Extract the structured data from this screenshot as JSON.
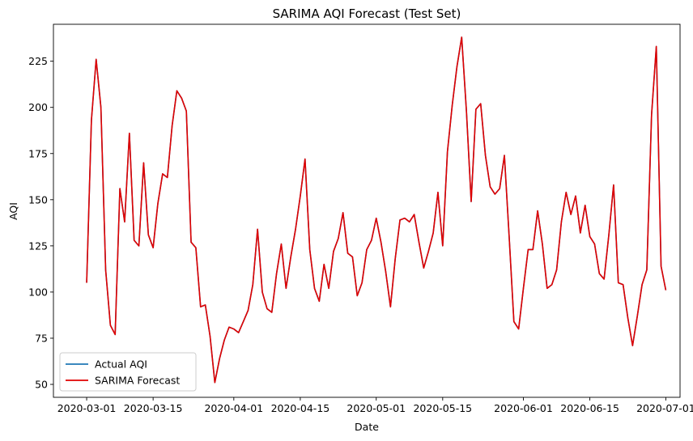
{
  "chart_data": {
    "type": "line",
    "title": "SARIMA AQI Forecast (Test Set)",
    "xlabel": "Date",
    "ylabel": "AQI",
    "x_start": "2020-03-01",
    "x_end": "2020-07-01",
    "xlim": [
      "2020-02-23",
      "2020-07-04"
    ],
    "ylim": [
      43,
      245
    ],
    "xticks": [
      "2020-03-01",
      "2020-03-15",
      "2020-04-01",
      "2020-04-15",
      "2020-05-01",
      "2020-05-15",
      "2020-06-01",
      "2020-06-15",
      "2020-07-01"
    ],
    "yticks": [
      50,
      75,
      100,
      125,
      150,
      175,
      200,
      225
    ],
    "grid": false,
    "legend_position": "lower-left",
    "series": [
      {
        "name": "Actual AQI",
        "color": "#1f77b4",
        "values": [
          105,
          193,
          226,
          200,
          112,
          82,
          77,
          156,
          138,
          186,
          128,
          125,
          170,
          131,
          124,
          148,
          164,
          162,
          190,
          209,
          205,
          198,
          127,
          124,
          92,
          93,
          76,
          51,
          64,
          74,
          81,
          80,
          78,
          84,
          90,
          104,
          134,
          100,
          91,
          89,
          110,
          126,
          102,
          119,
          134,
          152,
          172,
          123,
          102,
          95,
          115,
          102,
          122,
          129,
          143,
          121,
          119,
          98,
          105,
          123,
          128,
          140,
          127,
          111,
          92,
          118,
          139,
          140,
          138,
          142,
          127,
          113,
          122,
          132,
          154,
          125,
          176,
          201,
          222,
          238,
          198,
          149,
          199,
          202,
          174,
          157,
          153,
          156,
          174,
          130,
          84,
          80,
          102,
          123,
          123,
          144,
          126,
          102,
          104,
          112,
          138,
          154,
          142,
          152,
          132,
          147,
          130,
          126,
          110,
          107,
          131,
          158,
          105,
          104,
          86,
          71,
          87,
          104,
          112,
          196,
          233,
          114,
          101
        ]
      },
      {
        "name": "SARIMA Forecast",
        "color": "#e00000",
        "values": [
          105,
          193,
          226,
          200,
          112,
          82,
          77,
          156,
          138,
          186,
          128,
          125,
          170,
          131,
          124,
          148,
          164,
          162,
          190,
          209,
          205,
          198,
          127,
          124,
          92,
          93,
          76,
          51,
          64,
          74,
          81,
          80,
          78,
          84,
          90,
          104,
          134,
          100,
          91,
          89,
          110,
          126,
          102,
          119,
          134,
          152,
          172,
          123,
          102,
          95,
          115,
          102,
          122,
          129,
          143,
          121,
          119,
          98,
          105,
          123,
          128,
          140,
          127,
          111,
          92,
          118,
          139,
          140,
          138,
          142,
          127,
          113,
          122,
          132,
          154,
          125,
          176,
          201,
          222,
          238,
          198,
          149,
          199,
          202,
          174,
          157,
          153,
          156,
          174,
          130,
          84,
          80,
          102,
          123,
          123,
          144,
          126,
          102,
          104,
          112,
          138,
          154,
          142,
          152,
          132,
          147,
          130,
          126,
          110,
          107,
          131,
          158,
          105,
          104,
          86,
          71,
          87,
          104,
          112,
          196,
          233,
          114,
          101
        ]
      }
    ]
  }
}
